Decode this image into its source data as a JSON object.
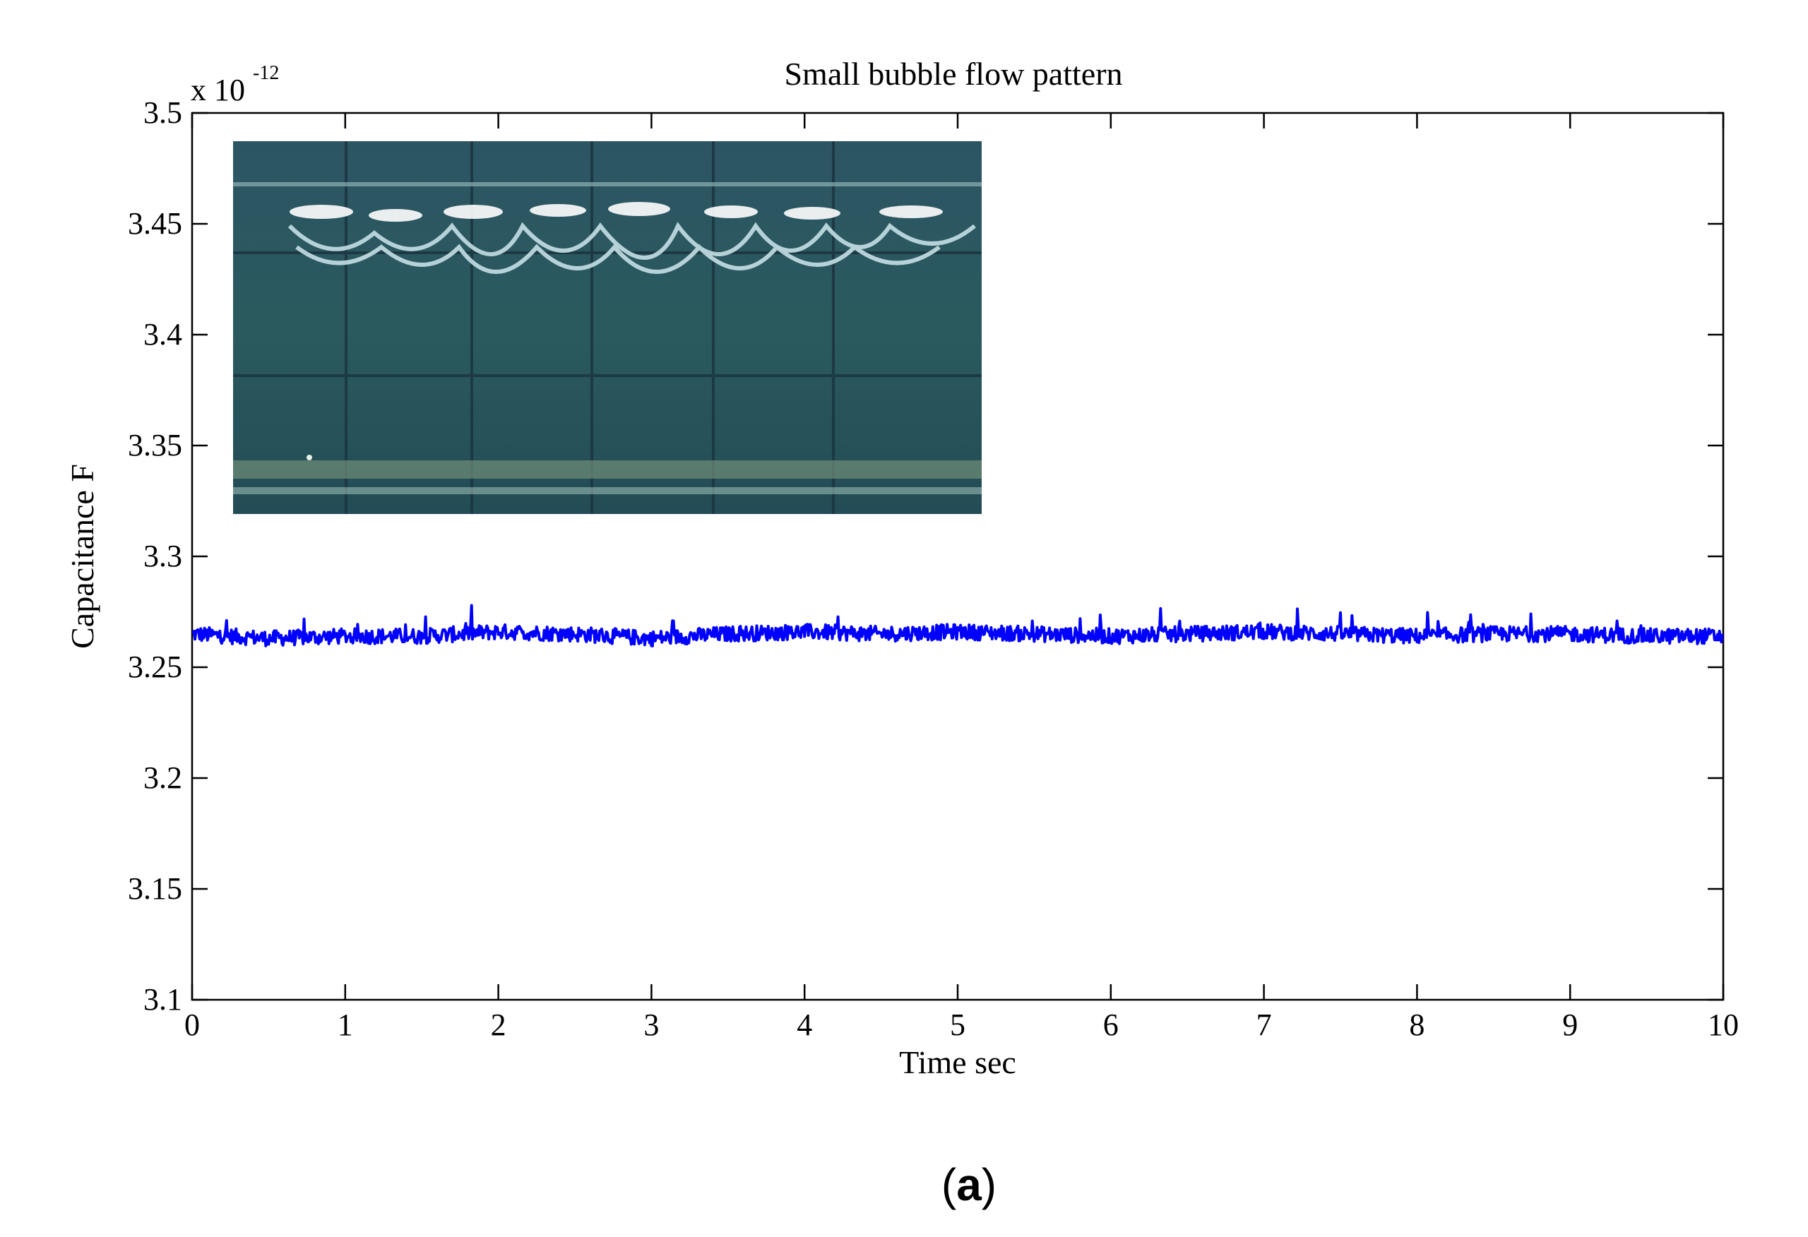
{
  "chart_data": {
    "type": "line",
    "title": "Small bubble flow pattern",
    "xlabel": "Time sec",
    "ylabel": "Capacitance F",
    "y_multiplier": "x 10",
    "y_exponent": "-12",
    "xlim": [
      0,
      10
    ],
    "ylim": [
      3.1,
      3.5
    ],
    "x_ticks": [
      "0",
      "1",
      "2",
      "3",
      "4",
      "5",
      "6",
      "7",
      "8",
      "9",
      "10"
    ],
    "y_ticks": [
      "3.1",
      "3.15",
      "3.2",
      "3.25",
      "3.3",
      "3.35",
      "3.4",
      "3.45",
      "3.5"
    ],
    "grid": false,
    "series": [
      {
        "color": "#0000ff",
        "x": [
          0,
          0.5,
          1,
          1.5,
          2,
          2.5,
          3,
          3.5,
          4,
          4.5,
          5,
          5.5,
          6,
          6.5,
          7,
          7.5,
          8,
          8.5,
          9,
          9.5,
          10
        ],
        "y": [
          3.265,
          3.263,
          3.264,
          3.264,
          3.266,
          3.265,
          3.263,
          3.265,
          3.266,
          3.265,
          3.266,
          3.265,
          3.264,
          3.265,
          3.266,
          3.265,
          3.264,
          3.265,
          3.265,
          3.264,
          3.264
        ]
      }
    ],
    "inset_image": "flow-photo"
  },
  "figure": {
    "panel_label_open": "(",
    "panel_label_letter": "a",
    "panel_label_close": ")"
  }
}
